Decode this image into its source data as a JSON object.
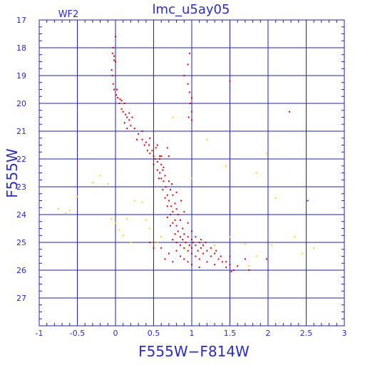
{
  "chart_data": {
    "type": "scatter",
    "title": "lmc_u5ay05",
    "panel_label": "WF2",
    "xlabel": "F555W−F814W",
    "ylabel": "F555W",
    "xlim": [
      -1,
      3
    ],
    "ylim": [
      17,
      28
    ],
    "y_inverted": true,
    "grid": true,
    "x_ticks": [
      "-1",
      "-0.5",
      "0",
      "0.5",
      "1",
      "1.5",
      "2",
      "2.5",
      "3"
    ],
    "y_ticks": [
      "17",
      "18",
      "19",
      "20",
      "21",
      "22",
      "23",
      "24",
      "25",
      "26",
      "27"
    ],
    "colors": {
      "axis": "#2b2bcc",
      "grid": "#2222aa",
      "primary": "#dd0000",
      "secondary": "#ffd800"
    },
    "series": [
      {
        "color": "red",
        "points": [
          [
            0.0,
            17.6
          ],
          [
            -0.03,
            18.0
          ],
          [
            -0.04,
            18.2
          ],
          [
            -0.02,
            18.3
          ],
          [
            0.0,
            18.5
          ],
          [
            -0.05,
            18.8
          ],
          [
            -0.04,
            19.0
          ],
          [
            -0.03,
            19.3
          ],
          [
            -0.02,
            19.5
          ],
          [
            0.01,
            19.7
          ],
          [
            0.03,
            19.8
          ],
          [
            0.05,
            20.0
          ],
          [
            0.08,
            19.9
          ],
          [
            0.12,
            20.0
          ],
          [
            0.08,
            20.2
          ],
          [
            0.1,
            20.3
          ],
          [
            0.13,
            20.4
          ],
          [
            0.15,
            20.5
          ],
          [
            0.12,
            20.7
          ],
          [
            0.18,
            20.6
          ],
          [
            0.2,
            20.8
          ],
          [
            0.15,
            20.9
          ],
          [
            0.25,
            20.9
          ],
          [
            0.3,
            21.1
          ],
          [
            0.28,
            21.3
          ],
          [
            0.35,
            21.3
          ],
          [
            0.38,
            21.5
          ],
          [
            0.4,
            21.4
          ],
          [
            0.42,
            21.7
          ],
          [
            0.45,
            21.8
          ],
          [
            0.5,
            21.9
          ],
          [
            0.48,
            21.7
          ],
          [
            0.52,
            22.0
          ],
          [
            0.55,
            22.1
          ],
          [
            0.58,
            22.0
          ],
          [
            0.5,
            22.2
          ],
          [
            0.6,
            22.2
          ],
          [
            0.62,
            22.4
          ],
          [
            0.55,
            22.4
          ],
          [
            0.58,
            22.5
          ],
          [
            0.65,
            22.6
          ],
          [
            0.6,
            22.7
          ],
          [
            0.63,
            22.8
          ],
          [
            0.7,
            22.8
          ],
          [
            0.66,
            23.0
          ],
          [
            0.62,
            23.1
          ],
          [
            0.72,
            23.1
          ],
          [
            0.68,
            23.3
          ],
          [
            0.75,
            23.3
          ],
          [
            0.65,
            23.4
          ],
          [
            0.7,
            23.5
          ],
          [
            0.78,
            23.6
          ],
          [
            0.73,
            23.7
          ],
          [
            0.68,
            23.7
          ],
          [
            0.8,
            23.8
          ],
          [
            0.75,
            23.9
          ],
          [
            0.72,
            24.0
          ],
          [
            0.82,
            24.0
          ],
          [
            0.68,
            24.1
          ],
          [
            0.78,
            24.2
          ],
          [
            0.85,
            24.2
          ],
          [
            0.75,
            24.3
          ],
          [
            0.8,
            24.4
          ],
          [
            0.72,
            24.4
          ],
          [
            0.88,
            24.5
          ],
          [
            0.82,
            24.6
          ],
          [
            0.78,
            24.7
          ],
          [
            0.9,
            24.7
          ],
          [
            0.85,
            24.8
          ],
          [
            0.95,
            24.8
          ],
          [
            0.75,
            24.9
          ],
          [
            0.88,
            24.9
          ],
          [
            1.0,
            24.9
          ],
          [
            0.8,
            25.0
          ],
          [
            0.92,
            25.0
          ],
          [
            1.02,
            25.0
          ],
          [
            1.1,
            25.0
          ],
          [
            0.85,
            25.1
          ],
          [
            0.97,
            25.1
          ],
          [
            1.05,
            25.1
          ],
          [
            1.15,
            25.1
          ],
          [
            0.9,
            25.2
          ],
          [
            1.0,
            25.2
          ],
          [
            1.12,
            25.2
          ],
          [
            0.8,
            25.3
          ],
          [
            0.95,
            25.3
          ],
          [
            1.08,
            25.3
          ],
          [
            1.2,
            25.3
          ],
          [
            0.7,
            25.4
          ],
          [
            1.0,
            25.4
          ],
          [
            1.15,
            25.4
          ],
          [
            1.3,
            25.4
          ],
          [
            0.85,
            25.5
          ],
          [
            1.05,
            25.5
          ],
          [
            1.25,
            25.5
          ],
          [
            0.9,
            25.6
          ],
          [
            1.1,
            25.6
          ],
          [
            1.35,
            25.6
          ],
          [
            0.95,
            25.7
          ],
          [
            1.2,
            25.7
          ],
          [
            1.4,
            25.7
          ],
          [
            1.0,
            25.8
          ],
          [
            1.3,
            25.8
          ],
          [
            1.5,
            25.8
          ],
          [
            1.1,
            25.9
          ],
          [
            1.45,
            25.9
          ],
          [
            1.55,
            26.0
          ],
          [
            1.52,
            26.05
          ],
          [
            1.75,
            26.0
          ],
          [
            0.6,
            25.2
          ],
          [
            0.5,
            25.2
          ],
          [
            0.45,
            25.0
          ],
          [
            0.65,
            25.6
          ],
          [
            0.75,
            25.7
          ],
          [
            1.5,
            25.5
          ],
          [
            1.7,
            25.6
          ],
          [
            1.98,
            25.6
          ],
          [
            0.55,
            21.5
          ],
          [
            0.44,
            21.5
          ],
          [
            0.68,
            21.6
          ],
          [
            0.7,
            21.9
          ],
          [
            0.6,
            21.9
          ],
          [
            0.9,
            19.0
          ],
          [
            0.95,
            19.3
          ],
          [
            0.97,
            19.6
          ],
          [
            0.98,
            20.0
          ],
          [
            1.0,
            20.3
          ],
          [
            0.96,
            20.5
          ],
          [
            1.0,
            19.8
          ],
          [
            1.0,
            20.6
          ],
          [
            0.97,
            18.2
          ],
          [
            0.95,
            18.6
          ],
          [
            1.5,
            19.2
          ],
          [
            2.28,
            20.3
          ],
          [
            2.52,
            23.5
          ],
          [
            -0.02,
            18.45
          ],
          [
            0.02,
            19.5
          ],
          [
            0.06,
            19.85
          ],
          [
            0.18,
            20.35
          ],
          [
            0.22,
            20.5
          ],
          [
            0.35,
            21.0
          ],
          [
            0.45,
            21.25
          ],
          [
            0.53,
            21.6
          ],
          [
            0.58,
            21.9
          ],
          [
            0.63,
            22.3
          ],
          [
            0.57,
            22.7
          ],
          [
            0.74,
            22.9
          ],
          [
            0.8,
            23.2
          ],
          [
            0.86,
            23.5
          ],
          [
            0.9,
            23.9
          ],
          [
            0.95,
            24.3
          ],
          [
            1.0,
            24.6
          ],
          [
            1.05,
            24.8
          ],
          [
            1.12,
            24.9
          ],
          [
            1.18,
            25.0
          ],
          [
            1.25,
            25.2
          ],
          [
            1.32,
            25.3
          ],
          [
            1.38,
            25.5
          ],
          [
            1.45,
            25.7
          ],
          [
            1.6,
            25.85
          ]
        ]
      },
      {
        "color": "yellow",
        "points": [
          [
            -0.75,
            23.8
          ],
          [
            -0.65,
            23.95
          ],
          [
            -0.6,
            23.85
          ],
          [
            -0.5,
            23.35
          ],
          [
            -0.3,
            22.85
          ],
          [
            -0.2,
            22.6
          ],
          [
            -0.1,
            22.9
          ],
          [
            -0.05,
            24.15
          ],
          [
            0.0,
            24.3
          ],
          [
            0.05,
            24.55
          ],
          [
            0.1,
            24.75
          ],
          [
            0.15,
            24.15
          ],
          [
            0.2,
            25.0
          ],
          [
            0.25,
            23.5
          ],
          [
            0.35,
            23.55
          ],
          [
            0.4,
            24.2
          ],
          [
            0.45,
            24.5
          ],
          [
            0.55,
            25.0
          ],
          [
            0.6,
            24.8
          ],
          [
            1.3,
            25.1
          ],
          [
            1.5,
            24.8
          ],
          [
            1.7,
            25.05
          ],
          [
            1.85,
            25.5
          ],
          [
            2.05,
            25.1
          ],
          [
            2.45,
            25.4
          ],
          [
            2.6,
            25.2
          ],
          [
            1.85,
            22.5
          ],
          [
            1.98,
            21.8
          ],
          [
            1.2,
            21.3
          ],
          [
            0.75,
            20.5
          ],
          [
            1.45,
            22.25
          ],
          [
            2.1,
            23.4
          ],
          [
            2.35,
            24.8
          ],
          [
            1.75,
            25.85
          ],
          [
            1.0,
            22.7
          ]
        ]
      }
    ]
  }
}
